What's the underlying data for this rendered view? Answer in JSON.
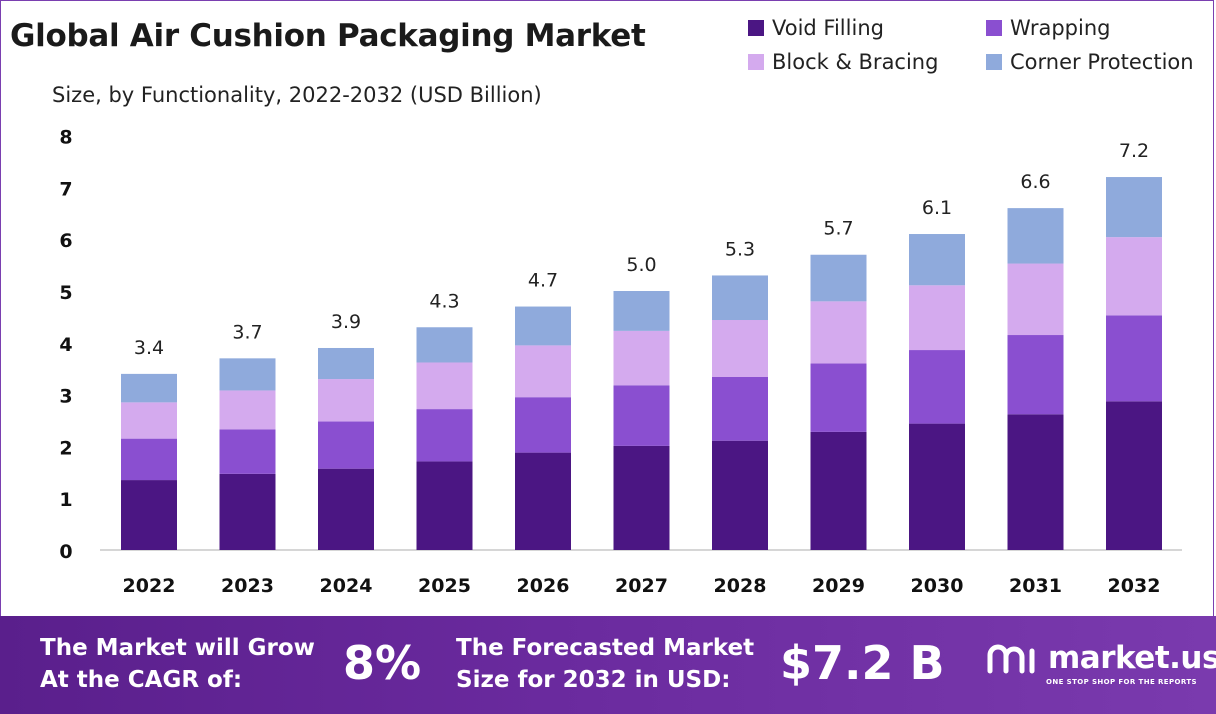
{
  "title": "Global Air Cushion Packaging Market",
  "subtitle": "Size, by Functionality, 2022-2032 (USD Billion)",
  "legend": [
    {
      "name": "Void Filling",
      "color": "#4b1683"
    },
    {
      "name": "Wrapping",
      "color": "#8a4fd0"
    },
    {
      "name": "Block & Bracing",
      "color": "#d4aaee"
    },
    {
      "name": "Corner Protection",
      "color": "#8faadc"
    }
  ],
  "chart_data": {
    "type": "bar",
    "stacked": true,
    "title": "Global Air Cushion Packaging Market",
    "subtitle": "Size, by Functionality, 2022-2032 (USD Billion)",
    "categories": [
      "2022",
      "2023",
      "2024",
      "2025",
      "2026",
      "2027",
      "2028",
      "2029",
      "2030",
      "2031",
      "2032"
    ],
    "series": [
      {
        "name": "Void Filling",
        "color": "#4b1683",
        "values": [
          1.35,
          1.47,
          1.57,
          1.71,
          1.88,
          2.01,
          2.11,
          2.28,
          2.44,
          2.62,
          2.87
        ]
      },
      {
        "name": "Wrapping",
        "color": "#8a4fd0",
        "values": [
          0.8,
          0.86,
          0.91,
          1.01,
          1.07,
          1.17,
          1.23,
          1.32,
          1.42,
          1.53,
          1.66
        ]
      },
      {
        "name": "Block & Bracing",
        "color": "#d4aaee",
        "values": [
          0.7,
          0.75,
          0.82,
          0.9,
          1.0,
          1.05,
          1.1,
          1.2,
          1.25,
          1.38,
          1.51
        ]
      },
      {
        "name": "Corner Protection",
        "color": "#8faadc",
        "values": [
          0.55,
          0.62,
          0.6,
          0.68,
          0.75,
          0.77,
          0.86,
          0.9,
          0.99,
          1.07,
          1.16
        ]
      }
    ],
    "totals": [
      "3.4",
      "3.7",
      "3.9",
      "4.3",
      "4.7",
      "5.0",
      "5.3",
      "5.7",
      "6.1",
      "6.6",
      "7.2"
    ],
    "yticks": [
      "0",
      "1",
      "2",
      "3",
      "4",
      "5",
      "6",
      "7",
      "8"
    ],
    "ylim": [
      0,
      8
    ],
    "grid": false,
    "legend_position": "top-right"
  },
  "footer": {
    "cagr_line1": "The Market will Grow",
    "cagr_line2": "At the CAGR of:",
    "cagr_value": "8%",
    "forecast_line1": "The Forecasted Market",
    "forecast_line2": "Size for 2032 in USD:",
    "forecast_value": "$7.2 B",
    "brand_name": "market.us",
    "brand_tagline": "ONE STOP SHOP FOR THE REPORTS"
  }
}
